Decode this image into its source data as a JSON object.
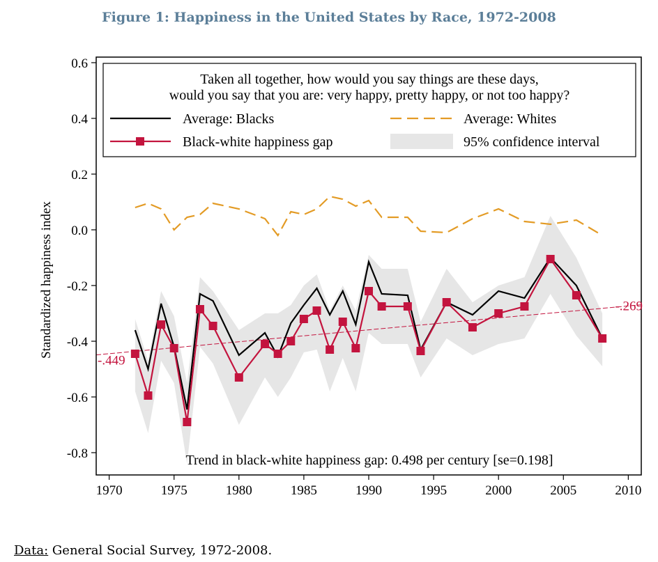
{
  "figure_title": "Figure 1: Happiness in the United States by Race, 1972-2008",
  "footer": {
    "label": "Data:",
    "text": " General Social Survey, 1972-2008."
  },
  "chart_data": {
    "type": "line",
    "ylabel": "Standardized happiness index",
    "xlabel": "",
    "xlim": [
      1969,
      2011
    ],
    "ylim": [
      -0.88,
      0.62
    ],
    "x_ticks": [
      1970,
      1975,
      1980,
      1985,
      1990,
      1995,
      2000,
      2005,
      2010
    ],
    "y_ticks": [
      0.6,
      0.4,
      0.2,
      0.0,
      -0.2,
      -0.4,
      -0.6,
      -0.8
    ],
    "y_tick_labels": [
      "0.6",
      "0.4",
      "0.2",
      "0.0",
      "-0.2",
      "-0.4",
      "-0.6",
      "-0.8"
    ],
    "legend_position": "top",
    "question_text": [
      "Taken all together, how would you say things are these days,",
      "would you say that you are: very happy, pretty happy, or not too happy?"
    ],
    "years": [
      1972,
      1973,
      1974,
      1975,
      1976,
      1977,
      1978,
      1980,
      1982,
      1983,
      1984,
      1985,
      1986,
      1987,
      1988,
      1989,
      1990,
      1991,
      1993,
      1994,
      1996,
      1998,
      2000,
      2002,
      2004,
      2006,
      2008
    ],
    "series": [
      {
        "name": "Average: Blacks",
        "color": "#000000",
        "style": "solid",
        "values": [
          -0.36,
          -0.5,
          -0.265,
          -0.42,
          -0.645,
          -0.23,
          -0.255,
          -0.45,
          -0.37,
          -0.455,
          -0.335,
          -0.27,
          -0.21,
          -0.305,
          -0.22,
          -0.34,
          -0.115,
          -0.23,
          -0.235,
          -0.43,
          -0.26,
          -0.305,
          -0.22,
          -0.245,
          -0.1,
          -0.2,
          -0.39
        ]
      },
      {
        "name": "Average: Whites",
        "color": "#e39b25",
        "style": "dashed",
        "values": [
          0.08,
          0.095,
          0.075,
          0.0,
          0.045,
          0.055,
          0.095,
          0.075,
          0.04,
          -0.02,
          0.065,
          0.055,
          0.075,
          0.12,
          0.11,
          0.085,
          0.105,
          0.045,
          0.045,
          -0.005,
          -0.01,
          0.04,
          0.075,
          0.03,
          0.02,
          0.035,
          -0.02
        ]
      },
      {
        "name": "Black-white happiness gap",
        "color": "#c3143e",
        "style": "solid-square-markers",
        "values": [
          -0.445,
          -0.595,
          -0.34,
          -0.425,
          -0.69,
          -0.285,
          -0.345,
          -0.53,
          -0.41,
          -0.445,
          -0.4,
          -0.32,
          -0.29,
          -0.43,
          -0.33,
          -0.425,
          -0.22,
          -0.275,
          -0.275,
          -0.435,
          -0.26,
          -0.35,
          -0.3,
          -0.275,
          -0.105,
          -0.235,
          -0.39
        ]
      }
    ],
    "confidence_interval": {
      "name": "95% confidence interval",
      "color": "#e6e6e6",
      "lower": [
        -0.58,
        -0.73,
        -0.47,
        -0.55,
        -0.84,
        -0.42,
        -0.48,
        -0.7,
        -0.53,
        -0.6,
        -0.53,
        -0.44,
        -0.43,
        -0.58,
        -0.46,
        -0.58,
        -0.37,
        -0.41,
        -0.41,
        -0.53,
        -0.39,
        -0.45,
        -0.41,
        -0.39,
        -0.23,
        -0.38,
        -0.49
      ],
      "upper": [
        -0.32,
        -0.47,
        -0.22,
        -0.31,
        -0.55,
        -0.17,
        -0.22,
        -0.36,
        -0.3,
        -0.3,
        -0.27,
        -0.2,
        -0.16,
        -0.29,
        -0.2,
        -0.29,
        -0.09,
        -0.14,
        -0.14,
        -0.33,
        -0.14,
        -0.26,
        -0.2,
        -0.17,
        0.05,
        -0.1,
        -0.3
      ]
    },
    "trend": {
      "color": "#c3143e",
      "start": {
        "x": 1969,
        "y": -0.449,
        "label": "-.449"
      },
      "end": {
        "x": 2011,
        "y": -0.269,
        "label": "-.269"
      }
    },
    "annotation": "Trend in black-white happiness gap: 0.498 per century [se=0.198]"
  }
}
